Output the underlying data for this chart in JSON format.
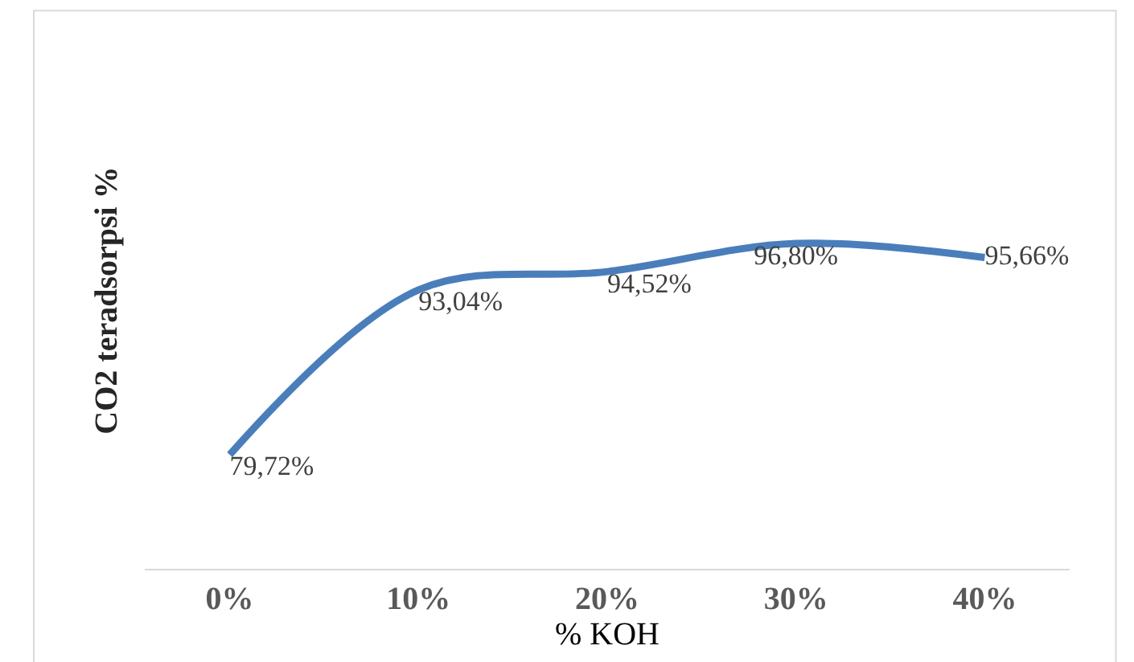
{
  "chart_data": {
    "type": "line",
    "xlabel": "% KOH",
    "ylabel": "CO2 teradsorpsi %",
    "categories": [
      "0%",
      "10%",
      "20%",
      "30%",
      "40%"
    ],
    "series": [
      {
        "color": "#4a7ebb",
        "values": [
          79.72,
          93.04,
          94.52,
          96.8,
          95.66
        ],
        "value_labels": [
          "79,72%",
          "93,04%",
          "94,52%",
          "96,80%",
          "95,66%"
        ]
      }
    ],
    "legend": false,
    "marker": "none",
    "line_style": "solid",
    "tick_labels": "x"
  }
}
